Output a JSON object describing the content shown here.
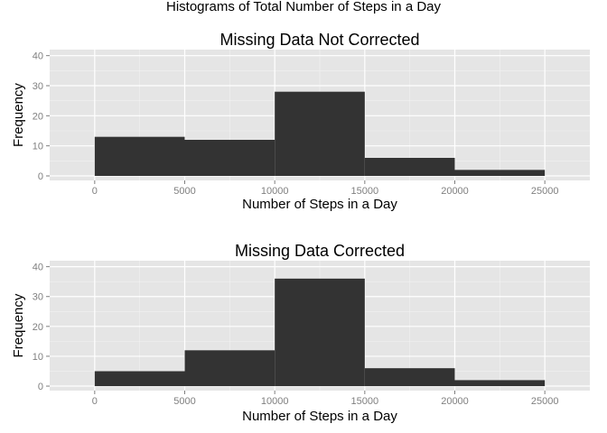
{
  "figure_title": "Histograms of Total Number of Steps in a Day",
  "colors": {
    "panel_background": "#e5e5e5",
    "grid": "#ffffff",
    "bar_fill": "#333333",
    "tick_text": "#7f7f7f"
  },
  "chart_data": [
    {
      "type": "bar",
      "title": "Missing Data Not Corrected",
      "xlabel": "Number of Steps in a Day",
      "ylabel": "Frequency",
      "bins": [
        [
          0,
          5000
        ],
        [
          5000,
          10000
        ],
        [
          10000,
          15000
        ],
        [
          15000,
          20000
        ],
        [
          20000,
          25000
        ]
      ],
      "values": [
        13,
        12,
        28,
        6,
        2
      ],
      "xlim": [
        -2500,
        27500
      ],
      "ylim": [
        -1.5,
        42
      ],
      "xticks": [
        0,
        5000,
        10000,
        15000,
        20000,
        25000
      ],
      "xtick_labels": [
        "0",
        "5000",
        "10000",
        "15000",
        "20000",
        "25000"
      ],
      "yticks": [
        0,
        10,
        20,
        30,
        40
      ],
      "ytick_labels": [
        "0",
        "10",
        "20",
        "30",
        "40"
      ],
      "grid": true,
      "legend": "none"
    },
    {
      "type": "bar",
      "title": "Missing Data Corrected",
      "xlabel": "Number of Steps in a Day",
      "ylabel": "Frequency",
      "bins": [
        [
          0,
          5000
        ],
        [
          5000,
          10000
        ],
        [
          10000,
          15000
        ],
        [
          15000,
          20000
        ],
        [
          20000,
          25000
        ]
      ],
      "values": [
        5,
        12,
        36,
        6,
        2
      ],
      "xlim": [
        -2500,
        27500
      ],
      "ylim": [
        -1.5,
        42
      ],
      "xticks": [
        0,
        5000,
        10000,
        15000,
        20000,
        25000
      ],
      "xtick_labels": [
        "0",
        "5000",
        "10000",
        "15000",
        "20000",
        "25000"
      ],
      "yticks": [
        0,
        10,
        20,
        30,
        40
      ],
      "ytick_labels": [
        "0",
        "10",
        "20",
        "30",
        "40"
      ],
      "grid": true,
      "legend": "none"
    }
  ]
}
